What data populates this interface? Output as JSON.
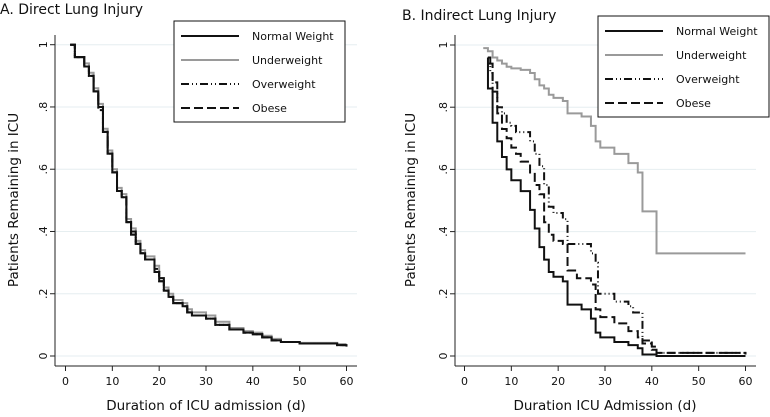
{
  "chart_data": [
    {
      "type": "line",
      "step": true,
      "title": "A. Direct Lung Injury",
      "xlabel": "Duration of ICU admission (d)",
      "ylabel": "Patients Remaining in ICU",
      "xlim": [
        0,
        60
      ],
      "ylim": [
        0,
        1
      ],
      "xticks": [
        0,
        10,
        20,
        30,
        40,
        50,
        60
      ],
      "yticks": [
        0,
        0.2,
        0.4,
        0.6,
        0.8,
        1
      ],
      "ytick_labels": [
        "0",
        ".2",
        ".4",
        ".6",
        ".8",
        "1"
      ],
      "grid": true,
      "legend_position": "top-right",
      "series": [
        {
          "name": "Normal Weight",
          "color": "#111111",
          "style": "solid",
          "x": [
            1,
            2,
            4,
            5,
            6,
            7,
            8,
            9,
            10,
            11,
            12,
            13,
            14,
            15,
            16,
            17,
            19,
            20,
            21,
            22,
            23,
            25,
            26,
            27,
            30,
            32,
            35,
            38,
            40,
            42,
            44,
            46,
            50,
            58,
            60
          ],
          "y": [
            1,
            0.96,
            0.93,
            0.9,
            0.85,
            0.8,
            0.72,
            0.65,
            0.59,
            0.53,
            0.51,
            0.43,
            0.39,
            0.36,
            0.33,
            0.31,
            0.27,
            0.24,
            0.21,
            0.19,
            0.17,
            0.16,
            0.14,
            0.13,
            0.12,
            0.1,
            0.085,
            0.075,
            0.07,
            0.06,
            0.05,
            0.045,
            0.04,
            0.035,
            0.035
          ]
        },
        {
          "name": "Underweight",
          "color": "#9a9a9a",
          "style": "solid",
          "x": [
            1,
            2,
            4,
            5,
            6,
            7,
            8,
            9,
            10,
            11,
            12,
            13,
            14,
            15,
            16,
            17,
            19,
            20,
            21,
            22,
            23,
            25,
            26,
            27,
            30,
            32,
            35,
            38,
            40,
            42,
            44,
            46,
            50,
            58,
            60
          ],
          "y": [
            1,
            0.96,
            0.94,
            0.91,
            0.86,
            0.81,
            0.73,
            0.66,
            0.6,
            0.54,
            0.52,
            0.44,
            0.41,
            0.37,
            0.34,
            0.32,
            0.29,
            0.25,
            0.22,
            0.2,
            0.18,
            0.17,
            0.15,
            0.14,
            0.13,
            0.11,
            0.09,
            0.08,
            0.075,
            0.065,
            0.055,
            0.045,
            0.042,
            0.038,
            0.038
          ]
        },
        {
          "name": "Overweight",
          "color": "#111111",
          "style": "dash-dot-dot",
          "x": [
            1,
            2,
            4,
            5,
            6,
            7,
            8,
            9,
            10,
            11,
            12,
            13,
            14,
            15,
            16,
            17,
            19,
            20,
            21,
            22,
            23,
            25,
            26,
            27,
            30,
            32,
            35,
            38,
            40,
            42,
            44,
            46,
            50,
            58,
            60
          ],
          "y": [
            1,
            0.96,
            0.93,
            0.9,
            0.85,
            0.79,
            0.72,
            0.65,
            0.59,
            0.53,
            0.51,
            0.43,
            0.4,
            0.36,
            0.33,
            0.31,
            0.28,
            0.25,
            0.21,
            0.19,
            0.17,
            0.16,
            0.14,
            0.13,
            0.12,
            0.1,
            0.085,
            0.075,
            0.07,
            0.06,
            0.05,
            0.045,
            0.04,
            0.035,
            0.035
          ]
        },
        {
          "name": "Obese",
          "color": "#111111",
          "style": "dashed",
          "x": [
            1,
            2,
            4,
            5,
            6,
            7,
            8,
            9,
            10,
            11,
            12,
            13,
            14,
            15,
            16,
            17,
            19,
            20,
            21,
            22,
            23,
            25,
            26,
            27,
            30,
            32,
            35,
            38,
            40,
            42,
            44,
            46,
            50,
            58,
            60
          ],
          "y": [
            1,
            0.96,
            0.93,
            0.9,
            0.85,
            0.8,
            0.72,
            0.65,
            0.59,
            0.53,
            0.51,
            0.43,
            0.39,
            0.36,
            0.33,
            0.31,
            0.27,
            0.24,
            0.21,
            0.19,
            0.17,
            0.16,
            0.14,
            0.13,
            0.12,
            0.1,
            0.085,
            0.075,
            0.07,
            0.06,
            0.05,
            0.045,
            0.04,
            0.035,
            0.03
          ]
        }
      ]
    },
    {
      "type": "line",
      "step": true,
      "title": "B. Indirect Lung Injury",
      "xlabel": "Duration ICU Admission (d)",
      "ylabel": "Patients Remaining in ICU",
      "xlim": [
        0,
        60
      ],
      "ylim": [
        0,
        1
      ],
      "xticks": [
        0,
        10,
        20,
        30,
        40,
        50,
        60
      ],
      "yticks": [
        0,
        0.2,
        0.4,
        0.6,
        0.8,
        1
      ],
      "ytick_labels": [
        "0",
        ".2",
        ".4",
        ".6",
        ".8",
        "1"
      ],
      "grid": true,
      "legend_position": "top-right",
      "series": [
        {
          "name": "Normal Weight",
          "color": "#111111",
          "style": "solid",
          "x": [
            5,
            5.01,
            6,
            7,
            8,
            9,
            10,
            12,
            14,
            15,
            16,
            17,
            18,
            19,
            21,
            22,
            25,
            27,
            28,
            29,
            32,
            35,
            37,
            38,
            41,
            60
          ],
          "y": [
            0.96,
            0.86,
            0.75,
            0.69,
            0.64,
            0.6,
            0.565,
            0.53,
            0.47,
            0.41,
            0.35,
            0.31,
            0.27,
            0.255,
            0.24,
            0.165,
            0.15,
            0.12,
            0.075,
            0.06,
            0.045,
            0.035,
            0.025,
            0.005,
            0,
            0
          ]
        },
        {
          "name": "Underweight",
          "color": "#9a9a9a",
          "style": "solid",
          "x": [
            4,
            5,
            6,
            7,
            8,
            9,
            10,
            12,
            14,
            15,
            16,
            17,
            18,
            19,
            21,
            22,
            25,
            27,
            28,
            29,
            32,
            35,
            37,
            38,
            41,
            60
          ],
          "y": [
            0.99,
            0.98,
            0.96,
            0.95,
            0.94,
            0.93,
            0.925,
            0.92,
            0.91,
            0.89,
            0.87,
            0.86,
            0.84,
            0.83,
            0.82,
            0.78,
            0.77,
            0.74,
            0.69,
            0.67,
            0.65,
            0.62,
            0.59,
            0.465,
            0.33,
            0.33
          ]
        },
        {
          "name": "Overweight",
          "color": "#111111",
          "style": "dash-dot-dot",
          "x": [
            5,
            5.5,
            6,
            7,
            8,
            9,
            10,
            11,
            14,
            15,
            16,
            17,
            18,
            19,
            21,
            22,
            24,
            27,
            28,
            28.5,
            32,
            35,
            36,
            38,
            40,
            41,
            60
          ],
          "y": [
            0.96,
            0.91,
            0.85,
            0.8,
            0.78,
            0.75,
            0.74,
            0.72,
            0.69,
            0.65,
            0.61,
            0.55,
            0.48,
            0.46,
            0.44,
            0.36,
            0.36,
            0.33,
            0.3,
            0.2,
            0.175,
            0.16,
            0.14,
            0.05,
            0.02,
            0.01,
            0.01
          ]
        },
        {
          "name": "Obese",
          "color": "#111111",
          "style": "dashed",
          "x": [
            5,
            6,
            7,
            8,
            9,
            10,
            11,
            12,
            14,
            15,
            16,
            17,
            18,
            19,
            21,
            22,
            24,
            27,
            28,
            29,
            32,
            35,
            37,
            38,
            40,
            41,
            60
          ],
          "y": [
            0.94,
            0.88,
            0.78,
            0.73,
            0.7,
            0.67,
            0.65,
            0.625,
            0.59,
            0.55,
            0.52,
            0.43,
            0.39,
            0.37,
            0.36,
            0.275,
            0.25,
            0.23,
            0.15,
            0.125,
            0.105,
            0.08,
            0.06,
            0.04,
            0.03,
            0.01,
            0.005
          ]
        }
      ]
    }
  ]
}
